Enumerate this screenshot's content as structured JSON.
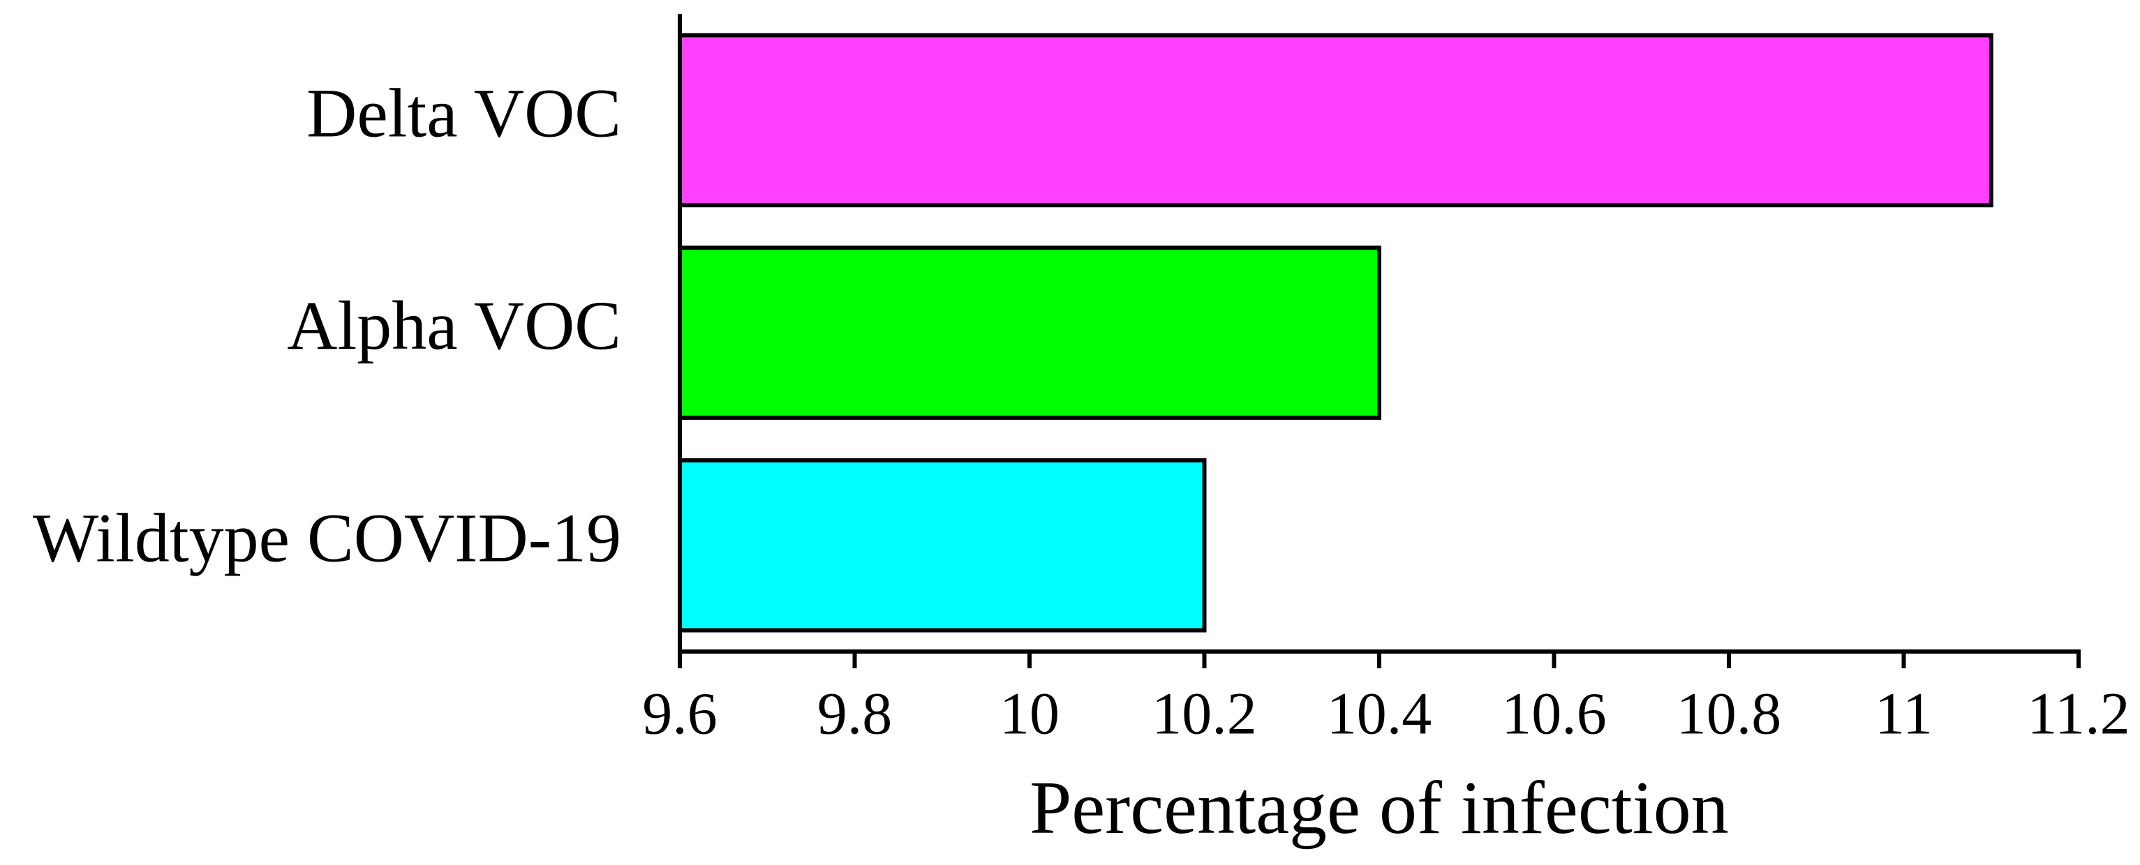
{
  "chart_data": {
    "type": "barh",
    "xlabel": "Percentage of infection",
    "categories": [
      "Delta VOC",
      "Alpha VOC",
      "Wildtype COVID-19"
    ],
    "values": [
      11.1,
      10.4,
      10.2
    ],
    "colors": [
      "#ff40ff",
      "#00ff00",
      "#00ffff"
    ],
    "xlim": [
      9.6,
      11.2
    ],
    "xticks": [
      9.6,
      9.8,
      10,
      10.2,
      10.4,
      10.6,
      10.8,
      11,
      11.2
    ]
  }
}
